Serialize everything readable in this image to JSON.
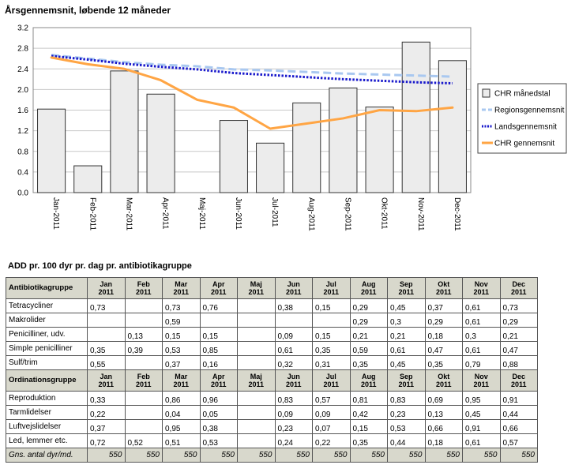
{
  "chart_data": {
    "type": "bar",
    "title": "Årsgennemsnit, løbende 12 måneder",
    "categories": [
      "Jan-2011",
      "Feb-2011",
      "Mar-2011",
      "Apr-2011",
      "Maj-2011",
      "Jun-2011",
      "Jul-2011",
      "Aug-2011",
      "Sep-2011",
      "Okt-2011",
      "Nov-2011",
      "Dec-2011"
    ],
    "ylim": [
      0,
      3.2
    ],
    "yticks": [
      "0.0",
      "0.4",
      "0.8",
      "1.2",
      "1.6",
      "2.0",
      "2.4",
      "2.8",
      "3.2"
    ],
    "grid": true,
    "legend_position": "right",
    "series": [
      {
        "name": "CHR månedstal",
        "kind": "bar",
        "color": "#e8e8e8",
        "values": [
          1.62,
          0.52,
          2.36,
          1.91,
          0.0,
          1.4,
          0.96,
          1.74,
          2.03,
          1.66,
          2.92,
          2.56
        ]
      },
      {
        "name": "Regionsgennemsnit",
        "kind": "line",
        "style": "dashed",
        "color": "#a9c8f0",
        "values": [
          2.67,
          2.6,
          2.53,
          2.48,
          2.45,
          2.39,
          2.37,
          2.34,
          2.31,
          2.29,
          2.27,
          2.25
        ]
      },
      {
        "name": "Landsgennemsnit",
        "kind": "line",
        "style": "dotted",
        "color": "#1a1acc",
        "values": [
          2.65,
          2.58,
          2.5,
          2.44,
          2.39,
          2.32,
          2.28,
          2.24,
          2.2,
          2.17,
          2.14,
          2.12
        ]
      },
      {
        "name": "CHR gennemsnit",
        "kind": "line",
        "style": "solid",
        "color": "#ffa544",
        "values": [
          2.62,
          2.49,
          2.4,
          2.18,
          1.8,
          1.65,
          1.24,
          1.34,
          1.44,
          1.6,
          1.58,
          1.65
        ]
      }
    ]
  },
  "table": {
    "title": "ADD pr. 100 dyr pr. dag pr. antibiotikagruppe",
    "months": [
      [
        "Jan",
        "2011"
      ],
      [
        "Feb",
        "2011"
      ],
      [
        "Mar",
        "2011"
      ],
      [
        "Apr",
        "2011"
      ],
      [
        "Maj",
        "2011"
      ],
      [
        "Jun",
        "2011"
      ],
      [
        "Jul",
        "2011"
      ],
      [
        "Aug",
        "2011"
      ],
      [
        "Sep",
        "2011"
      ],
      [
        "Okt",
        "2011"
      ],
      [
        "Nov",
        "2011"
      ],
      [
        "Dec",
        "2011"
      ]
    ],
    "group1_label": "Antibiotikagruppe",
    "group1_rows": [
      {
        "label": "Tetracycliner",
        "values": [
          "0,73",
          "",
          "0,73",
          "0,76",
          "",
          "0,38",
          "0,15",
          "0,29",
          "0,45",
          "0,37",
          "0,61",
          "0,73"
        ]
      },
      {
        "label": "Makrolider",
        "values": [
          "",
          "",
          "0,59",
          "",
          "",
          "",
          "",
          "0,29",
          "0,3",
          "0,29",
          "0,61",
          "0,29"
        ]
      },
      {
        "label": "Penicilliner, udv.",
        "values": [
          "",
          "0,13",
          "0,15",
          "0,15",
          "",
          "0,09",
          "0,15",
          "0,21",
          "0,21",
          "0,18",
          "0,3",
          "0,21"
        ]
      },
      {
        "label": "Simple penicilliner",
        "values": [
          "0,35",
          "0,39",
          "0,53",
          "0,85",
          "",
          "0,61",
          "0,35",
          "0,59",
          "0,61",
          "0,47",
          "0,61",
          "0,47"
        ]
      },
      {
        "label": "Sulf/trim",
        "values": [
          "0,55",
          "",
          "0,37",
          "0,16",
          "",
          "0,32",
          "0,31",
          "0,35",
          "0,45",
          "0,35",
          "0,79",
          "0,88"
        ]
      }
    ],
    "group2_label": "Ordinationsgruppe",
    "group2_rows": [
      {
        "label": "Reproduktion",
        "values": [
          "0,33",
          "",
          "0,86",
          "0,96",
          "",
          "0,83",
          "0,57",
          "0,81",
          "0,83",
          "0,69",
          "0,95",
          "0,91"
        ]
      },
      {
        "label": "Tarmlidelser",
        "values": [
          "0,22",
          "",
          "0,04",
          "0,05",
          "",
          "0,09",
          "0,09",
          "0,42",
          "0,23",
          "0,13",
          "0,45",
          "0,44"
        ]
      },
      {
        "label": "Luftvejslidelser",
        "values": [
          "0,37",
          "",
          "0,95",
          "0,38",
          "",
          "0,23",
          "0,07",
          "0,15",
          "0,53",
          "0,66",
          "0,91",
          "0,66"
        ]
      },
      {
        "label": "Led, lemmer etc.",
        "values": [
          "0,72",
          "0,52",
          "0,51",
          "0,53",
          "",
          "0,24",
          "0,22",
          "0,35",
          "0,44",
          "0,18",
          "0,61",
          "0,57"
        ]
      }
    ],
    "footer": {
      "label": "Gns. antal dyr/md.",
      "values": [
        "550",
        "550",
        "550",
        "550",
        "550",
        "550",
        "550",
        "550",
        "550",
        "550",
        "550",
        "550"
      ]
    }
  }
}
